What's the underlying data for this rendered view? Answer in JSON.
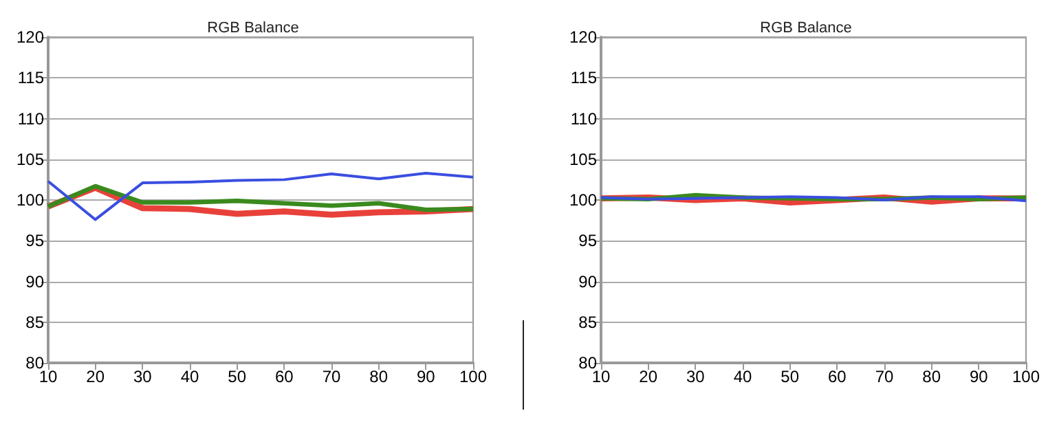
{
  "chart_data": [
    {
      "type": "line",
      "title": "RGB Balance",
      "x": [
        10,
        20,
        30,
        40,
        50,
        60,
        70,
        80,
        90,
        100
      ],
      "series": [
        {
          "color": "#e8413a",
          "values": [
            99.2,
            101.5,
            99.0,
            98.9,
            98.3,
            98.6,
            98.2,
            98.5,
            98.6,
            98.9
          ]
        },
        {
          "color": "#3a8a1e",
          "values": [
            99.2,
            101.7,
            99.7,
            99.7,
            99.9,
            99.6,
            99.3,
            99.6,
            98.8,
            98.9
          ]
        },
        {
          "color": "#3a4ee0",
          "values": [
            102.3,
            97.6,
            102.1,
            102.2,
            102.4,
            102.5,
            103.2,
            102.6,
            103.3,
            102.8
          ]
        }
      ],
      "xlim": [
        10,
        100
      ],
      "xticks": [
        10,
        20,
        30,
        40,
        50,
        60,
        70,
        80,
        90,
        100
      ],
      "ylim": [
        80,
        120
      ],
      "yticks": [
        80,
        85,
        90,
        95,
        100,
        105,
        110,
        115,
        120
      ],
      "grid": "y",
      "marker": "none",
      "line_style": "solid"
    },
    {
      "type": "line",
      "title": "RGB Balance",
      "x": [
        10,
        20,
        30,
        40,
        50,
        60,
        70,
        80,
        90,
        100
      ],
      "series": [
        {
          "color": "#e8413a",
          "values": [
            100.2,
            100.3,
            100.0,
            100.2,
            99.7,
            100.0,
            100.3,
            99.8,
            100.2,
            100.2
          ]
        },
        {
          "color": "#3a8a1e",
          "values": [
            100.2,
            100.1,
            100.6,
            100.3,
            100.2,
            100.1,
            100.1,
            100.3,
            100.1,
            100.3
          ]
        },
        {
          "color": "#3a4ee0",
          "values": [
            100.3,
            100.1,
            100.2,
            100.3,
            100.4,
            100.3,
            100.0,
            100.4,
            100.4,
            99.9
          ]
        }
      ],
      "xlim": [
        10,
        100
      ],
      "xticks": [
        10,
        20,
        30,
        40,
        50,
        60,
        70,
        80,
        90,
        100
      ],
      "ylim": [
        80,
        120
      ],
      "yticks": [
        80,
        85,
        90,
        95,
        100,
        105,
        110,
        115,
        120
      ],
      "grid": "y",
      "marker": "none",
      "line_style": "solid"
    }
  ]
}
